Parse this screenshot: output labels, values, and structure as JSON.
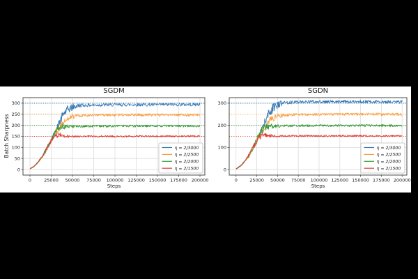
{
  "figure": {
    "background": "#000000",
    "panel_background": "#ffffff",
    "ylabel": "Batch Sharpness",
    "xlabel": "Steps",
    "text_color": "#1a1a1a",
    "grid_color": "#dcdcdc",
    "spine_color": "#4a4a4a"
  },
  "chart_data": [
    {
      "type": "line",
      "title": "SGDM",
      "xlabel": "Steps",
      "ylabel": "Batch Sharpness",
      "xlim": [
        -8200,
        205700
      ],
      "ylim": [
        -25,
        325
      ],
      "xticks": [
        0,
        25000,
        50000,
        75000,
        100000,
        125000,
        150000,
        175000,
        200000
      ],
      "yticks": [
        0,
        50,
        100,
        150,
        200,
        250,
        300
      ],
      "grid": true,
      "legend_position": "lower right",
      "reference_lines": [
        {
          "y": 300,
          "color": "#3579b5",
          "style": "dotted"
        },
        {
          "y": 250,
          "color": "#f9a142",
          "style": "dotted"
        },
        {
          "y": 200,
          "color": "#349a34",
          "style": "dotted"
        },
        {
          "y": 150,
          "color": "#e03b30",
          "style": "dotted"
        }
      ],
      "series": [
        {
          "name": "η = 2/3000",
          "color": "#3579b5",
          "plateau": 294,
          "noise": 7,
          "noise_peak_x": 41000,
          "anchors": [
            [
              0,
              3
            ],
            [
              5000,
              15
            ],
            [
              10000,
              35
            ],
            [
              15000,
              62
            ],
            [
              20000,
              95
            ],
            [
              25000,
              130
            ],
            [
              30000,
              168
            ],
            [
              35000,
              215
            ],
            [
              40000,
              255
            ],
            [
              45000,
              272
            ],
            [
              50000,
              282
            ],
            [
              55000,
              287
            ],
            [
              60000,
              290
            ],
            [
              80000,
              292
            ],
            [
              120000,
              293
            ],
            [
              200000,
              294
            ]
          ]
        },
        {
          "name": "η = 2/2500",
          "color": "#f9a142",
          "plateau": 247,
          "noise": 6,
          "noise_peak_x": 38000,
          "anchors": [
            [
              0,
              3
            ],
            [
              5000,
              14
            ],
            [
              10000,
              34
            ],
            [
              15000,
              60
            ],
            [
              20000,
              93
            ],
            [
              25000,
              132
            ],
            [
              30000,
              165
            ],
            [
              35000,
              195
            ],
            [
              40000,
              218
            ],
            [
              45000,
              232
            ],
            [
              50000,
              240
            ],
            [
              60000,
              244
            ],
            [
              80000,
              246
            ],
            [
              120000,
              247
            ],
            [
              200000,
              247
            ]
          ]
        },
        {
          "name": "η = 2/2000",
          "color": "#349a34",
          "plateau": 197,
          "noise": 5,
          "noise_peak_x": 33000,
          "anchors": [
            [
              0,
              3
            ],
            [
              5000,
              14
            ],
            [
              10000,
              35
            ],
            [
              15000,
              62
            ],
            [
              20000,
              96
            ],
            [
              25000,
              135
            ],
            [
              30000,
              172
            ],
            [
              35000,
              190
            ],
            [
              40000,
              193
            ],
            [
              45000,
              194
            ],
            [
              50000,
              195
            ],
            [
              75000,
              196
            ],
            [
              120000,
              197
            ],
            [
              200000,
              197
            ]
          ]
        },
        {
          "name": "η = 2/1500",
          "color": "#e03b30",
          "plateau": 150,
          "noise": 4,
          "noise_peak_x": 28000,
          "anchors": [
            [
              0,
              3
            ],
            [
              5000,
              15
            ],
            [
              10000,
              37
            ],
            [
              15000,
              65
            ],
            [
              20000,
              99
            ],
            [
              25000,
              131
            ],
            [
              30000,
              152
            ],
            [
              35000,
              158
            ],
            [
              40000,
              152
            ],
            [
              50000,
              149
            ],
            [
              60000,
              150
            ],
            [
              100000,
              150
            ],
            [
              200000,
              151
            ]
          ]
        }
      ]
    },
    {
      "type": "line",
      "title": "SGDN",
      "xlabel": "Steps",
      "ylabel": "Batch Sharpness",
      "xlim": [
        -8200,
        205700
      ],
      "ylim": [
        -25,
        325
      ],
      "xticks": [
        0,
        25000,
        50000,
        75000,
        100000,
        125000,
        150000,
        175000,
        200000
      ],
      "yticks": [
        0,
        100,
        200,
        300
      ],
      "grid": true,
      "legend_position": "lower right",
      "reference_lines": [
        {
          "y": 300,
          "color": "#3579b5",
          "style": "dotted"
        },
        {
          "y": 250,
          "color": "#f9a142",
          "style": "dotted"
        },
        {
          "y": 200,
          "color": "#349a34",
          "style": "dotted"
        },
        {
          "y": 150,
          "color": "#e03b30",
          "style": "dotted"
        }
      ],
      "series": [
        {
          "name": "η = 2/3000",
          "color": "#3579b5",
          "plateau": 306,
          "noise": 7,
          "noise_peak_x": 42000,
          "anchors": [
            [
              0,
              3
            ],
            [
              5000,
              15
            ],
            [
              10000,
              34
            ],
            [
              15000,
              60
            ],
            [
              20000,
              92
            ],
            [
              25000,
              128
            ],
            [
              30000,
              170
            ],
            [
              35000,
              218
            ],
            [
              40000,
              258
            ],
            [
              45000,
              280
            ],
            [
              50000,
              292
            ],
            [
              55000,
              299
            ],
            [
              60000,
              303
            ],
            [
              80000,
              306
            ],
            [
              120000,
              307
            ],
            [
              200000,
              306
            ]
          ]
        },
        {
          "name": "η = 2/2500",
          "color": "#f9a142",
          "plateau": 250,
          "noise": 6,
          "noise_peak_x": 38000,
          "anchors": [
            [
              0,
              3
            ],
            [
              5000,
              14
            ],
            [
              10000,
              33
            ],
            [
              15000,
              58
            ],
            [
              20000,
              90
            ],
            [
              25000,
              130
            ],
            [
              30000,
              165
            ],
            [
              35000,
              196
            ],
            [
              40000,
              220
            ],
            [
              45000,
              234
            ],
            [
              50000,
              242
            ],
            [
              60000,
              247
            ],
            [
              80000,
              249
            ],
            [
              120000,
              250
            ],
            [
              200000,
              250
            ]
          ]
        },
        {
          "name": "η = 2/2000",
          "color": "#349a34",
          "plateau": 199,
          "noise": 5,
          "noise_peak_x": 33000,
          "anchors": [
            [
              0,
              3
            ],
            [
              5000,
              14
            ],
            [
              10000,
              34
            ],
            [
              15000,
              60
            ],
            [
              20000,
              93
            ],
            [
              25000,
              136
            ],
            [
              30000,
              172
            ],
            [
              35000,
              190
            ],
            [
              40000,
              195
            ],
            [
              50000,
              197
            ],
            [
              75000,
              198
            ],
            [
              120000,
              199
            ],
            [
              200000,
              199
            ]
          ]
        },
        {
          "name": "η = 2/1500",
          "color": "#e03b30",
          "plateau": 152,
          "noise": 4,
          "noise_peak_x": 28000,
          "anchors": [
            [
              0,
              3
            ],
            [
              5000,
              15
            ],
            [
              10000,
              36
            ],
            [
              15000,
              64
            ],
            [
              20000,
              98
            ],
            [
              25000,
              132
            ],
            [
              30000,
              153
            ],
            [
              35000,
              158
            ],
            [
              40000,
              153
            ],
            [
              50000,
              151
            ],
            [
              75000,
              152
            ],
            [
              120000,
              152
            ],
            [
              200000,
              152
            ]
          ]
        }
      ]
    }
  ]
}
